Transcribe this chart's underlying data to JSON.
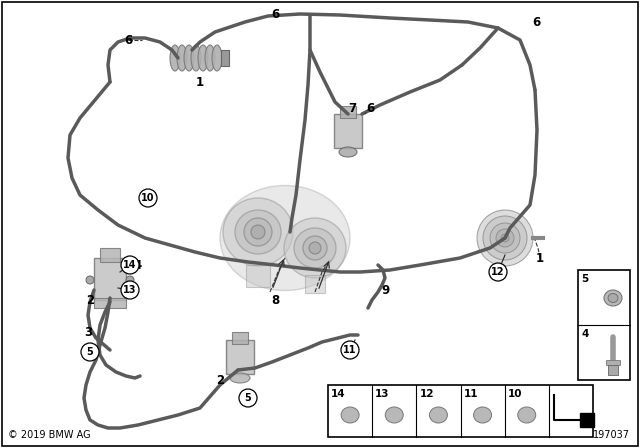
{
  "bg_color": "#ffffff",
  "copyright": "© 2019 BMW AG",
  "part_number": "197037",
  "line_color": "#5a5a5a",
  "line_width": 2.5,
  "component_color": "#aaaaaa",
  "component_edge": "#777777"
}
